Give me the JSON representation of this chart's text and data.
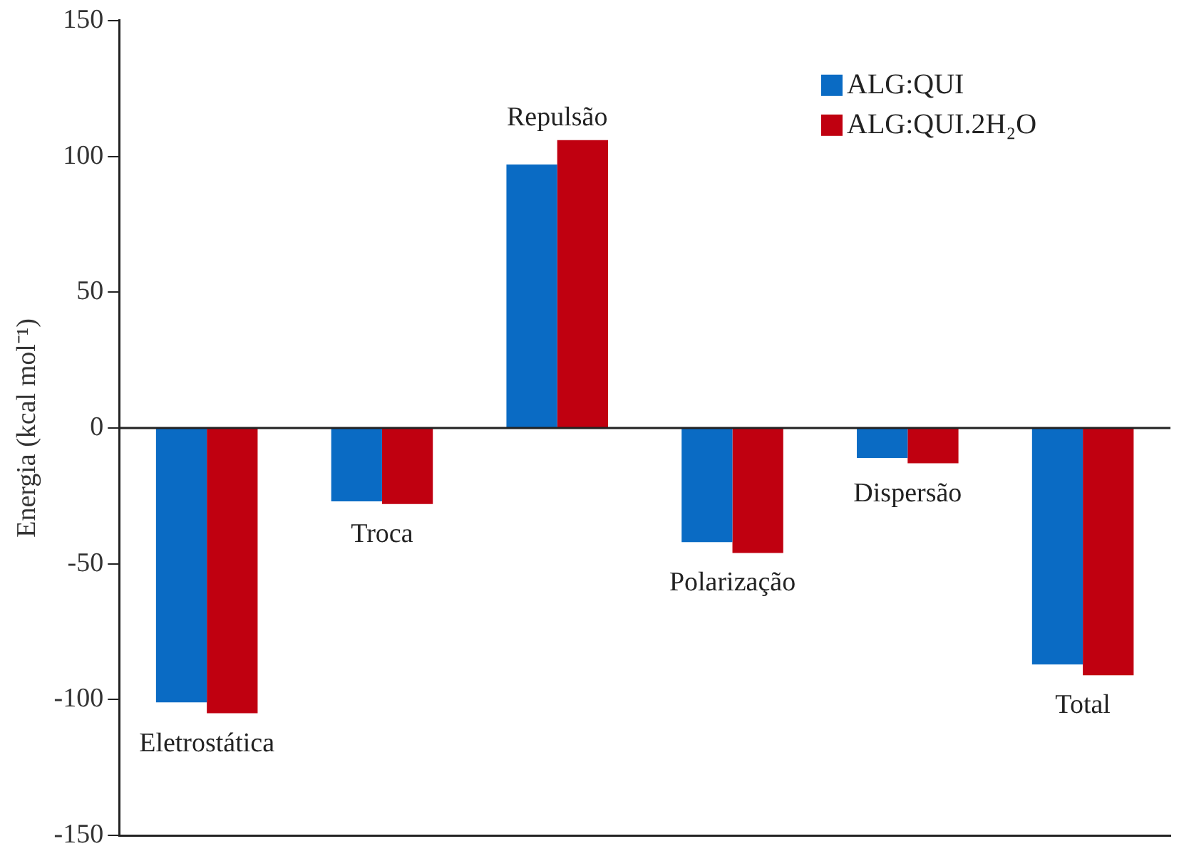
{
  "chart_data": {
    "type": "bar",
    "ylabel": "Energia (kcal mol⁻¹)",
    "categories": [
      "Eletrostática",
      "Troca",
      "Repulsão",
      "Polarização",
      "Dispersão",
      "Total"
    ],
    "series": [
      {
        "name": "ALG:QUI",
        "color": "#0a6bc4",
        "values": [
          -101,
          -27,
          97,
          -42,
          -11,
          -87
        ]
      },
      {
        "name": "ALG:QUI.2H₂O",
        "color": "#c00010",
        "values": [
          -105,
          -28,
          106,
          -46,
          -13,
          -91
        ]
      }
    ],
    "ylim": [
      -150,
      150
    ],
    "yticks": [
      -150,
      -100,
      -50,
      0,
      50,
      100,
      150
    ],
    "ref_lines": [
      {
        "axis": "y",
        "value": 0
      }
    ],
    "tick_labels": "y",
    "grid": false,
    "legend": "top right"
  }
}
